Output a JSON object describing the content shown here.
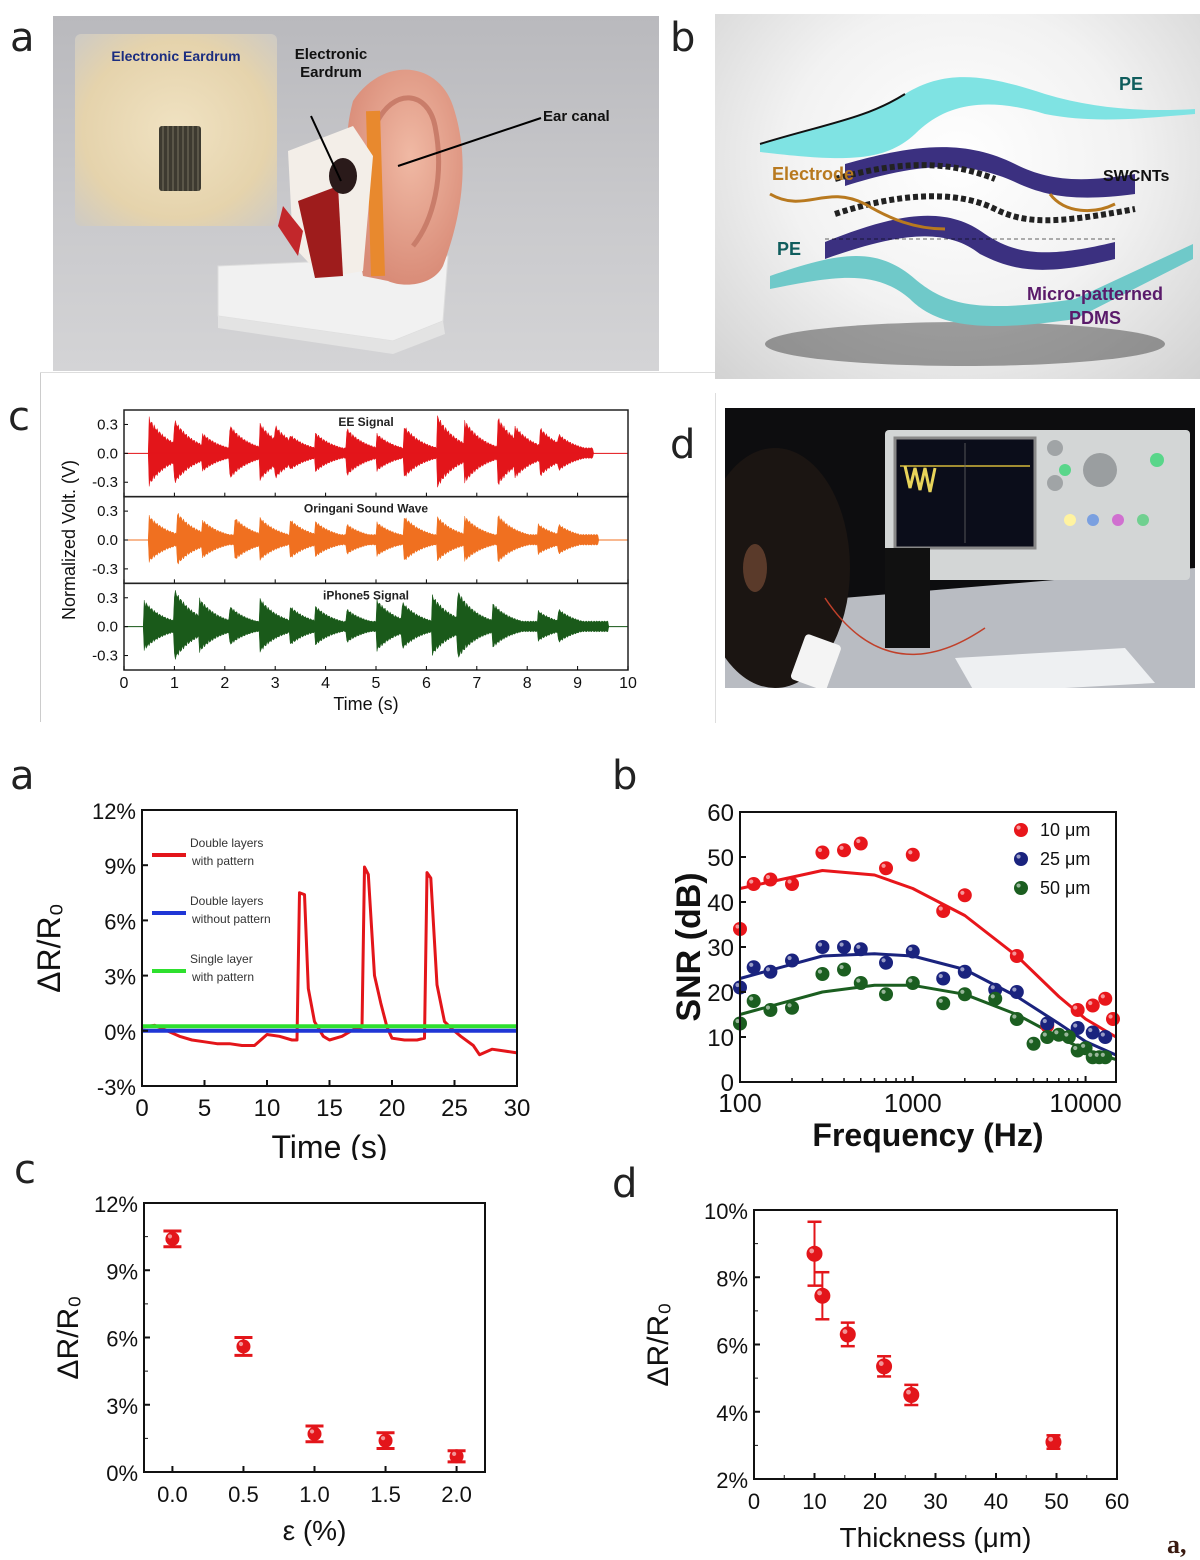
{
  "top_figure": {
    "panel_a": {
      "letter": "a",
      "inset_label": "Electronic Eardrum",
      "callout_eardrum_line1": "Electronic",
      "callout_eardrum_line2": "Eardrum",
      "callout_ear_canal": "Ear canal"
    },
    "panel_b": {
      "letter": "b",
      "labels": {
        "pe_top": "PE",
        "electrode": "Electrode",
        "swcnts": "SWCNTs",
        "pe_bottom": "PE",
        "pdms_line1": "Micro-patterned",
        "pdms_line2": "PDMS"
      },
      "colors": {
        "pe": "#7fe0e0",
        "pdms": "#3a2f7a",
        "electrode": "#b8791f",
        "pdms_label": "#5a1a6a",
        "pe_label": "#0f5d5d"
      }
    },
    "panel_c": {
      "letter": "c"
    },
    "panel_d": {
      "letter": "d"
    }
  },
  "caption_marker": "a,",
  "chart_data": [
    {
      "id": "top-c",
      "type": "area",
      "title": "",
      "xlabel": "Time (s)",
      "ylabel": "Normalized Volt. (V)",
      "xlim": [
        0,
        10
      ],
      "ylim_per_subplot": [
        -0.45,
        0.45
      ],
      "x_ticks": [
        "0",
        "1",
        "2",
        "3",
        "4",
        "5",
        "6",
        "7",
        "8",
        "9",
        "10"
      ],
      "y_ticks": [
        "0.3",
        "0.0",
        "-0.3"
      ],
      "subplots": [
        {
          "name": "EE Signal",
          "color": "#e3151a",
          "bursts": [
            [
              0.5,
              0.38
            ],
            [
              1.0,
              0.36
            ],
            [
              1.55,
              0.22
            ],
            [
              2.1,
              0.3
            ],
            [
              2.7,
              0.32
            ],
            [
              3.0,
              0.3
            ],
            [
              3.3,
              0.2
            ],
            [
              3.8,
              0.22
            ],
            [
              4.4,
              0.28
            ],
            [
              5.0,
              0.22
            ],
            [
              5.55,
              0.3
            ],
            [
              6.2,
              0.42
            ],
            [
              6.75,
              0.36
            ],
            [
              7.4,
              0.4
            ],
            [
              7.75,
              0.3
            ],
            [
              8.25,
              0.28
            ],
            [
              8.6,
              0.22
            ]
          ],
          "end": 9.3
        },
        {
          "name": "Oringani Sound Wave",
          "color": "#f07020",
          "bursts": [
            [
              0.5,
              0.26
            ],
            [
              1.05,
              0.3
            ],
            [
              1.55,
              0.22
            ],
            [
              2.2,
              0.24
            ],
            [
              2.7,
              0.24
            ],
            [
              3.3,
              0.22
            ],
            [
              3.8,
              0.2
            ],
            [
              4.4,
              0.18
            ],
            [
              5.0,
              0.2
            ],
            [
              5.55,
              0.26
            ],
            [
              6.2,
              0.26
            ],
            [
              6.75,
              0.26
            ],
            [
              7.4,
              0.28
            ],
            [
              8.2,
              0.18
            ],
            [
              8.6,
              0.18
            ]
          ],
          "end": 9.4
        },
        {
          "name": "iPhone5 Signal",
          "color": "#1a5a1a",
          "bursts": [
            [
              0.4,
              0.28
            ],
            [
              1.0,
              0.4
            ],
            [
              1.5,
              0.3
            ],
            [
              2.1,
              0.22
            ],
            [
              2.7,
              0.3
            ],
            [
              3.3,
              0.22
            ],
            [
              3.8,
              0.22
            ],
            [
              4.4,
              0.2
            ],
            [
              5.0,
              0.3
            ],
            [
              5.5,
              0.28
            ],
            [
              6.1,
              0.35
            ],
            [
              6.6,
              0.4
            ],
            [
              7.3,
              0.26
            ],
            [
              8.2,
              0.18
            ],
            [
              8.6,
              0.2
            ]
          ],
          "end": 9.6
        }
      ]
    },
    {
      "id": "bottom-a",
      "type": "line",
      "title": "",
      "xlabel": "Time (s)",
      "ylabel": "ΔR/R₀",
      "xlim": [
        0,
        30
      ],
      "ylim": [
        -3,
        12
      ],
      "x_ticks": [
        "0",
        "5",
        "10",
        "15",
        "20",
        "25",
        "30"
      ],
      "y_ticks": [
        "-3%",
        "0%",
        "3%",
        "6%",
        "9%",
        "12%"
      ],
      "legend": "top-left",
      "series": [
        {
          "name": "Double layers with pattern",
          "color": "#e3151a",
          "x": [
            0,
            1,
            2,
            3,
            4,
            5,
            6,
            7,
            8,
            9,
            10,
            11,
            12,
            12.4,
            12.6,
            13.0,
            13.3,
            13.8,
            14.5,
            15,
            16,
            17,
            17.6,
            17.8,
            18.1,
            18.6,
            19.1,
            19.6,
            20,
            21,
            22,
            22.6,
            22.8,
            23.1,
            23.6,
            24.2,
            24.8,
            25.5,
            26.5,
            27,
            28,
            29,
            30
          ],
          "y": [
            0.2,
            0.3,
            0,
            -0.3,
            -0.5,
            -0.6,
            -0.7,
            -0.7,
            -0.8,
            -0.8,
            -0.2,
            -0.3,
            -0.5,
            -0.5,
            7.5,
            7.4,
            2.3,
            0.5,
            -0.3,
            -0.5,
            -0.3,
            0.1,
            0.2,
            8.9,
            8.5,
            3.0,
            1.5,
            0.2,
            -0.4,
            -0.5,
            -0.5,
            -0.4,
            8.6,
            8.3,
            2.5,
            0.5,
            0.1,
            -0.3,
            -0.8,
            -1.3,
            -1.0,
            -1.1,
            -1.2
          ]
        },
        {
          "name": "Double layers without pattern",
          "color": "#1f36d6",
          "x": [
            0,
            30
          ],
          "y": [
            0,
            0
          ]
        },
        {
          "name": "Single layer with pattern",
          "color": "#2ee02e",
          "x": [
            0,
            30
          ],
          "y": [
            0.25,
            0.25
          ]
        }
      ]
    },
    {
      "id": "bottom-b",
      "type": "scatter",
      "title": "",
      "xlabel": "Frequency (Hz)",
      "ylabel": "SNR (dB)",
      "xscale": "log",
      "xlim": [
        100,
        15000
      ],
      "ylim": [
        0,
        60
      ],
      "x_ticks": [
        "100",
        "1000",
        "10000"
      ],
      "y_ticks": [
        "0",
        "10",
        "20",
        "30",
        "40",
        "50",
        "60"
      ],
      "legend": "top-right",
      "series": [
        {
          "name": "10 μm",
          "color": "#e8161b",
          "x": [
            100,
            120,
            150,
            200,
            300,
            400,
            500,
            700,
            1000,
            1500,
            2000,
            4000,
            6000,
            9000,
            11000,
            13000,
            15000
          ],
          "y": [
            34,
            44,
            45,
            44,
            51,
            51.5,
            53,
            47.5,
            50.5,
            38,
            41.5,
            28,
            12.5,
            16,
            17,
            18.5,
            14
          ],
          "fit": [
            [
              100,
              43
            ],
            [
              300,
              47
            ],
            [
              600,
              46
            ],
            [
              1000,
              43
            ],
            [
              2000,
              37
            ],
            [
              4000,
              28
            ],
            [
              7000,
              19
            ],
            [
              10000,
              14
            ],
            [
              15000,
              10
            ]
          ]
        },
        {
          "name": "25 μm",
          "color": "#1a237e",
          "x": [
            100,
            120,
            150,
            200,
            300,
            400,
            500,
            700,
            1000,
            1500,
            2000,
            3000,
            4000,
            6000,
            9000,
            11000,
            13000
          ],
          "y": [
            21,
            25.5,
            24.5,
            27,
            30,
            30,
            29.5,
            26.5,
            29,
            23,
            24.5,
            20.5,
            20,
            13,
            12,
            11,
            10
          ],
          "fit": [
            [
              100,
              23
            ],
            [
              300,
              28
            ],
            [
              600,
              28.5
            ],
            [
              1000,
              28
            ],
            [
              2000,
              25
            ],
            [
              4000,
              19
            ],
            [
              7000,
              13
            ],
            [
              10000,
              9
            ],
            [
              15000,
              6
            ]
          ]
        },
        {
          "name": "50 μm",
          "color": "#1b5e20",
          "x": [
            100,
            120,
            150,
            200,
            300,
            400,
            500,
            700,
            1000,
            1500,
            2000,
            3000,
            4000,
            5000,
            6000,
            7000,
            8000,
            9000,
            10000,
            11000,
            12000,
            13000
          ],
          "y": [
            13,
            18,
            16,
            16.5,
            24,
            25,
            22,
            19.5,
            22,
            17.5,
            19.5,
            18.5,
            14,
            8.5,
            10,
            10.5,
            10,
            7,
            7.5,
            5.5,
            5.5,
            5.5
          ],
          "fit": [
            [
              100,
              15
            ],
            [
              300,
              20
            ],
            [
              600,
              21.5
            ],
            [
              1000,
              21.5
            ],
            [
              2000,
              19.5
            ],
            [
              4000,
              15
            ],
            [
              7000,
              10
            ],
            [
              10000,
              7
            ],
            [
              15000,
              5
            ]
          ]
        }
      ]
    },
    {
      "id": "bottom-c",
      "type": "scatter",
      "title": "",
      "xlabel": "ε (%)",
      "ylabel": "ΔR/R₀",
      "xlim": [
        -0.2,
        2.2
      ],
      "ylim": [
        0,
        12
      ],
      "x_ticks": [
        "0.0",
        "0.5",
        "1.0",
        "1.5",
        "2.0"
      ],
      "y_ticks": [
        "0%",
        "3%",
        "6%",
        "9%",
        "12%"
      ],
      "series": [
        {
          "name": "ΔR/R0",
          "color": "#e3151a",
          "x": [
            0.0,
            0.5,
            1.0,
            1.5,
            2.0
          ],
          "y": [
            10.4,
            5.6,
            1.7,
            1.4,
            0.7
          ],
          "err": [
            0.35,
            0.4,
            0.35,
            0.35,
            0.25
          ]
        }
      ]
    },
    {
      "id": "bottom-d",
      "type": "scatter",
      "title": "",
      "xlabel": "Thickness (μm)",
      "ylabel": "ΔR/R₀",
      "xlim": [
        0,
        60
      ],
      "ylim": [
        2,
        10
      ],
      "x_ticks": [
        "0",
        "10",
        "20",
        "30",
        "40",
        "50",
        "60"
      ],
      "y_ticks": [
        "2%",
        "4%",
        "6%",
        "8%",
        "10%"
      ],
      "series": [
        {
          "name": "ΔR/R0",
          "color": "#e3151a",
          "x": [
            10,
            11.3,
            15.5,
            21.5,
            26,
            49.5
          ],
          "y": [
            8.7,
            7.45,
            6.3,
            5.35,
            4.5,
            3.1
          ],
          "err": [
            0.95,
            0.7,
            0.35,
            0.3,
            0.3,
            0.2
          ]
        }
      ]
    }
  ],
  "bottom_letters": {
    "a": "a",
    "b": "b",
    "c": "c",
    "d": "d"
  }
}
